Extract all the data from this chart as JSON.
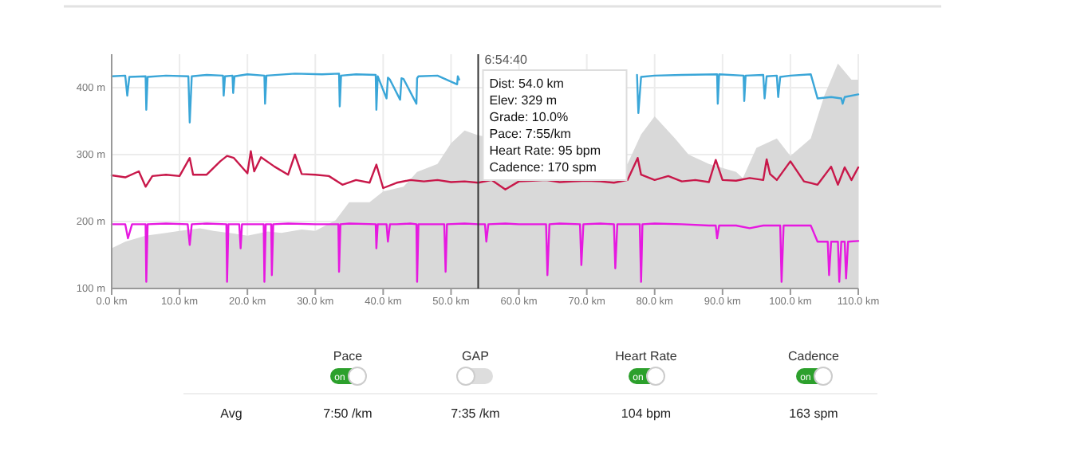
{
  "chart_data": {
    "type": "line",
    "xlim": [
      0,
      110
    ],
    "ylim": [
      100,
      450
    ],
    "xticks": [
      {
        "value": 0,
        "label": "0.0 km"
      },
      {
        "value": 10,
        "label": "10.0 km"
      },
      {
        "value": 20,
        "label": "20.0 km"
      },
      {
        "value": 30,
        "label": "30.0 km"
      },
      {
        "value": 40,
        "label": "40.0 km"
      },
      {
        "value": 50,
        "label": "50.0 km"
      },
      {
        "value": 60,
        "label": "60.0 km"
      },
      {
        "value": 70,
        "label": "70.0 km"
      },
      {
        "value": 80,
        "label": "80.0 km"
      },
      {
        "value": 90,
        "label": "90.0 km"
      },
      {
        "value": 100,
        "label": "100.0 km"
      },
      {
        "value": 110,
        "label": "110.0 km"
      }
    ],
    "yticks": [
      {
        "value": 100,
        "label": "100 m"
      },
      {
        "value": 200,
        "label": "200 m"
      },
      {
        "value": 300,
        "label": "300 m"
      },
      {
        "value": 400,
        "label": "400 m"
      }
    ],
    "grid": true,
    "series": [
      {
        "type": "area",
        "color": "#d9d9d9",
        "x": [
          0,
          2,
          5,
          8,
          10,
          13,
          15,
          18,
          20,
          23,
          25,
          28,
          30,
          33,
          35,
          38,
          40,
          43,
          45,
          48,
          50,
          52,
          54,
          56,
          60,
          64,
          68,
          72,
          76,
          78,
          80,
          83,
          85,
          88,
          92,
          93,
          95,
          98,
          100,
          103,
          105,
          107,
          109,
          110
        ],
        "values": [
          160,
          170,
          179,
          183,
          186,
          190,
          186,
          182,
          179,
          185,
          183,
          188,
          186,
          202,
          229,
          229,
          245,
          252,
          274,
          286,
          317,
          336,
          329,
          null,
          null,
          null,
          null,
          null,
          286,
          330,
          357,
          324,
          300,
          286,
          274,
          265,
          310,
          324,
          298,
          324,
          388,
          436,
          412,
          412
        ]
      },
      {
        "color": "#3aa6d8",
        "x": [
          0,
          2,
          2.3,
          2.6,
          5,
          5.1,
          5.3,
          8,
          11.3,
          11.5,
          11.8,
          14,
          16.4,
          16.5,
          16.7,
          17.8,
          17.9,
          18.1,
          20,
          22.5,
          22.6,
          22.8,
          27,
          31,
          33.5,
          33.6,
          33.8,
          36,
          38.9,
          39,
          39.2,
          40.5,
          40.7,
          41,
          42.5,
          42.7,
          43,
          44.9,
          45,
          45.2,
          48,
          50.9,
          51,
          51.2,
          54,
          58,
          62,
          66,
          70,
          74,
          77.4,
          77.6,
          78,
          80,
          84,
          89.2,
          89.3,
          89.5,
          93.1,
          93.2,
          93.4,
          96,
          96.2,
          96.5,
          98,
          98.2,
          98.5,
          100,
          103,
          104,
          106,
          107.5,
          107.7,
          108,
          110
        ],
        "values": [
          417,
          418,
          388,
          416,
          417,
          367,
          416,
          418,
          417,
          348,
          417,
          419,
          418,
          388,
          417,
          418,
          392,
          417,
          420,
          418,
          376,
          418,
          421,
          420,
          421,
          372,
          418,
          420,
          419,
          367,
          417,
          384,
          415,
          412,
          382,
          414,
          413,
          376,
          414,
          417,
          418,
          405,
          417,
          412,
          null,
          null,
          null,
          null,
          null,
          null,
          419,
          362,
          416,
          418,
          419,
          420,
          376,
          420,
          418,
          380,
          418,
          419,
          384,
          417,
          418,
          386,
          416,
          418,
          420,
          384,
          386,
          384,
          376,
          386,
          390
        ]
      },
      {
        "color": "#c8184a",
        "x": [
          0,
          2,
          4,
          5,
          6,
          8,
          10,
          11.5,
          12,
          14,
          16,
          17,
          18,
          20,
          20.5,
          21,
          22,
          24,
          26,
          27,
          28,
          30,
          32,
          34,
          36,
          38,
          39,
          40,
          42,
          44,
          46,
          48,
          50,
          52,
          54,
          56,
          58,
          60,
          62,
          64,
          66,
          68,
          70,
          72,
          74,
          76,
          77.5,
          78,
          80,
          82,
          84,
          86,
          88,
          89,
          90,
          92,
          94,
          96,
          96.5,
          97,
          98,
          100,
          102,
          104,
          106,
          107,
          108,
          109,
          110
        ],
        "values": [
          269,
          266,
          275,
          252,
          268,
          270,
          268,
          295,
          270,
          270,
          290,
          298,
          295,
          272,
          305,
          275,
          296,
          282,
          270,
          300,
          271,
          270,
          268,
          255,
          262,
          258,
          285,
          250,
          258,
          262,
          260,
          262,
          259,
          260,
          258,
          262,
          248,
          260,
          261,
          262,
          259,
          260,
          261,
          260,
          258,
          262,
          295,
          270,
          262,
          268,
          260,
          262,
          259,
          292,
          262,
          261,
          265,
          262,
          293,
          271,
          262,
          290,
          260,
          255,
          282,
          255,
          281,
          262,
          281
        ]
      },
      {
        "color": "#e619e0",
        "x": [
          0,
          2,
          2.4,
          3,
          5,
          5.1,
          5.3,
          8,
          11.2,
          11.5,
          11.8,
          14,
          16.9,
          17,
          17.2,
          18.8,
          19,
          19.2,
          22.4,
          22.5,
          22.7,
          23.5,
          23.6,
          23.8,
          26,
          30,
          33.4,
          33.5,
          33.7,
          35,
          38.9,
          39,
          39.2,
          40.5,
          40.7,
          41,
          42,
          44,
          44.9,
          45,
          45.2,
          47,
          49,
          49.2,
          49.4,
          52,
          54,
          55,
          55.2,
          55.5,
          58,
          60,
          64,
          64.2,
          64.5,
          66,
          69,
          69.2,
          69.5,
          72,
          74,
          74.2,
          74.5,
          77.8,
          78,
          78.2,
          80,
          84,
          88,
          89,
          89.2,
          89.5,
          92,
          94,
          96,
          98,
          98.5,
          98.7,
          99,
          100,
          102,
          103,
          104,
          105,
          105.5,
          105.7,
          106,
          107,
          107.2,
          107.5,
          108,
          108.2,
          108.5,
          110
        ],
        "values": [
          196,
          196,
          175,
          196,
          196,
          110,
          196,
          197,
          196,
          165,
          196,
          197,
          196,
          110,
          196,
          196,
          160,
          196,
          196,
          110,
          196,
          196,
          120,
          196,
          197,
          196,
          196,
          125,
          196,
          197,
          196,
          160,
          196,
          196,
          170,
          196,
          196,
          197,
          196,
          110,
          196,
          196,
          196,
          125,
          196,
          197,
          196,
          196,
          170,
          196,
          197,
          196,
          196,
          120,
          196,
          197,
          196,
          135,
          196,
          197,
          196,
          130,
          196,
          196,
          110,
          196,
          197,
          196,
          194,
          194,
          175,
          194,
          194,
          190,
          194,
          194,
          194,
          110,
          194,
          194,
          194,
          194,
          170,
          170,
          170,
          120,
          170,
          170,
          110,
          170,
          170,
          115,
          170,
          171
        ]
      }
    ],
    "ref_lines": [
      {
        "axis": "x",
        "value": 54,
        "label": "6:54:40",
        "color": "#333333"
      }
    ],
    "annotations": [
      "Dist: 54.0 km",
      "Elev: 329 m",
      "Grade: 10.0%",
      "Pace: 7:55/km",
      "Heart Rate: 95 bpm",
      "Cadence: 170 spm",
      "Pace",
      "GAP",
      "Heart Rate",
      "Cadence",
      "on",
      "on",
      "on",
      "Avg",
      "7:50 /km",
      "7:35 /km",
      "104 bpm",
      "163 spm"
    ]
  }
}
